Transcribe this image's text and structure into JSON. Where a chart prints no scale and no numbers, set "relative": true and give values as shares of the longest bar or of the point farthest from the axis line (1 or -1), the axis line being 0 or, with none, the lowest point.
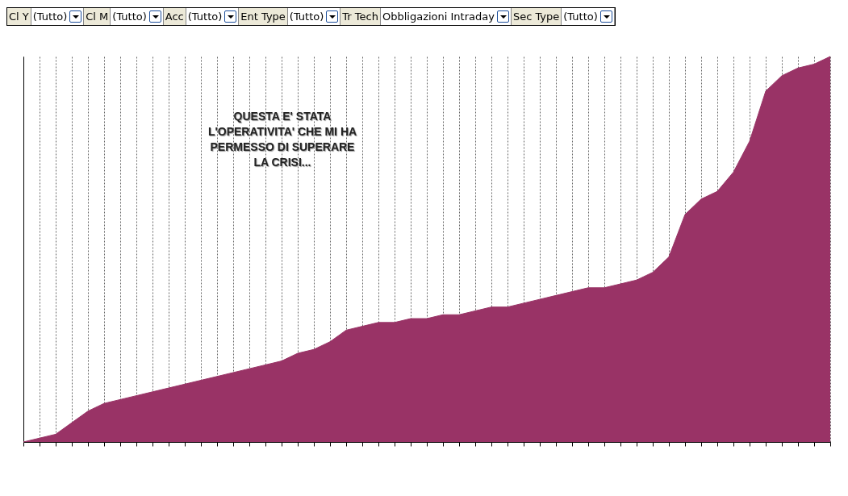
{
  "chart_data": {
    "type": "area",
    "relative": true,
    "grid": "x",
    "categories": [
      null,
      null,
      null,
      null,
      null,
      null,
      null,
      null,
      null,
      null,
      null,
      null,
      null,
      null,
      null,
      null,
      null,
      null,
      null,
      null,
      null,
      null,
      null,
      null,
      null,
      null,
      null,
      null,
      null,
      null,
      null,
      null,
      null,
      null,
      null,
      null,
      null,
      null,
      null,
      null,
      null,
      null,
      null,
      null,
      null,
      null,
      null,
      null,
      null,
      null,
      null
    ],
    "series": [
      {
        "color": "#993366",
        "values": [
          0.0,
          0.01,
          0.02,
          0.05,
          0.08,
          0.1,
          0.11,
          0.12,
          0.13,
          0.14,
          0.15,
          0.16,
          0.17,
          0.18,
          0.19,
          0.2,
          0.21,
          0.23,
          0.24,
          0.26,
          0.29,
          0.3,
          0.31,
          0.31,
          0.32,
          0.32,
          0.33,
          0.33,
          0.34,
          0.35,
          0.35,
          0.36,
          0.37,
          0.38,
          0.39,
          0.4,
          0.4,
          0.41,
          0.42,
          0.44,
          0.48,
          0.59,
          0.63,
          0.65,
          0.7,
          0.78,
          0.91,
          0.95,
          0.97,
          0.98,
          1
        ]
      }
    ],
    "annotations": [
      "QUESTA E' STATA L'OPERATIVITA' CHE MI HA PERMESSO DI SUPERARE LA CRISI...",
      "Cl Y",
      "(Tutto)",
      "Cl M",
      "(Tutto)",
      "Acc",
      "(Tutto)",
      "Ent Type",
      "(Tutto)",
      "Tr Tech",
      "Obbligazioni Intraday",
      "Sec Type",
      "(Tutto)"
    ]
  }
}
